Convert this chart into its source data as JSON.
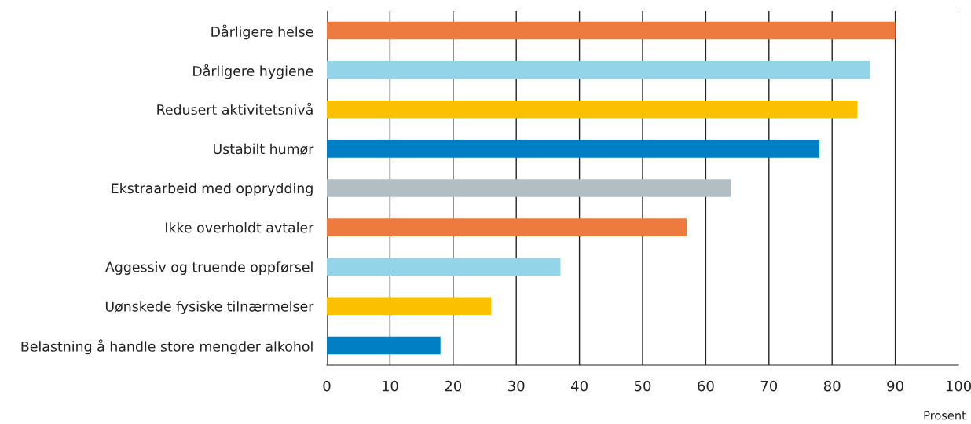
{
  "chart_data": {
    "type": "bar",
    "orientation": "horizontal",
    "xlabel": "Prosent",
    "categories": [
      "Dårligere helse",
      "Dårligere hygiene",
      "Redusert aktivitetsnivå",
      "Ustabilt humør",
      "Ekstraarbeid med opprydding",
      "Ikke overholdt avtaler",
      "Aggessiv og truende oppførsel",
      "Uønskede fysiske tilnærmelser",
      "Belastning å handle store mengder alkohol"
    ],
    "values": [
      90,
      86,
      84,
      78,
      64,
      57,
      37,
      26,
      18
    ],
    "colors": [
      "#ee7b3e",
      "#94d4e8",
      "#fbc100",
      "#007fc4",
      "#b3bec4",
      "#ee7b3e",
      "#94d4e8",
      "#fbc100",
      "#007fc4"
    ],
    "xlim": [
      0,
      100
    ],
    "xticks": [
      0,
      10,
      20,
      30,
      40,
      50,
      60,
      70,
      80,
      90,
      100
    ],
    "grid": "x",
    "legend": false
  }
}
